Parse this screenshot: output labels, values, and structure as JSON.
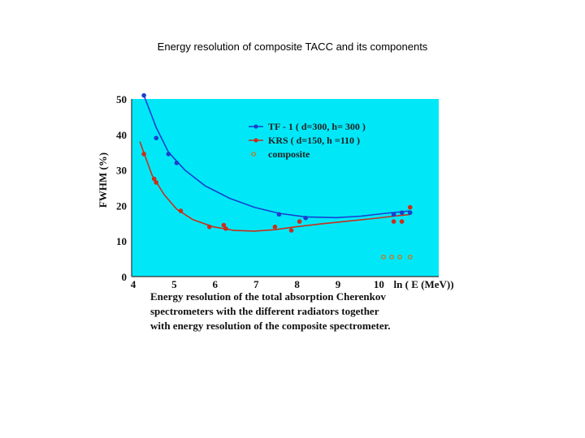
{
  "slide": {
    "title": "Energy resolution of composite TACC and its components"
  },
  "chart_data": {
    "type": "line",
    "xlabel": "ln ( E (MeV))",
    "ylabel": "FWHM (%)",
    "xlim": [
      4,
      11.5
    ],
    "ylim": [
      0,
      50
    ],
    "xticks": [
      4,
      5,
      6,
      7,
      8,
      9,
      10
    ],
    "yticks": [
      0,
      10,
      20,
      30,
      40,
      50
    ],
    "grid": false,
    "legend_position": "top-center",
    "background_color": "#00e8f8",
    "series": [
      {
        "name": "TF - 1 ( d=300, h= 300 )",
        "color": "#1a3fd0",
        "marker": "circle",
        "points": [
          [
            4.3,
            51
          ],
          [
            4.6,
            39
          ],
          [
            4.9,
            34.5
          ],
          [
            5.1,
            32
          ],
          [
            7.6,
            17.5
          ],
          [
            8.25,
            16.5
          ],
          [
            10.4,
            17.5
          ],
          [
            10.6,
            18
          ],
          [
            10.8,
            18
          ]
        ],
        "fit": [
          [
            4.3,
            51
          ],
          [
            4.6,
            42
          ],
          [
            4.9,
            35
          ],
          [
            5.3,
            30
          ],
          [
            5.8,
            25.5
          ],
          [
            6.4,
            22
          ],
          [
            7.0,
            19.5
          ],
          [
            7.6,
            17.8
          ],
          [
            8.25,
            16.8
          ],
          [
            9.0,
            16.6
          ],
          [
            9.6,
            17
          ],
          [
            10.2,
            17.8
          ],
          [
            10.8,
            18.5
          ]
        ]
      },
      {
        "name": "KRS ( d=150, h =110 )",
        "color": "#c8301a",
        "marker": "circle",
        "points": [
          [
            4.3,
            34.5
          ],
          [
            4.55,
            27.5
          ],
          [
            4.6,
            26.5
          ],
          [
            5.2,
            18.5
          ],
          [
            5.9,
            14
          ],
          [
            6.25,
            14.5
          ],
          [
            6.3,
            13.5
          ],
          [
            7.5,
            14
          ],
          [
            7.9,
            13
          ],
          [
            8.1,
            15.5
          ],
          [
            10.4,
            15.5
          ],
          [
            10.6,
            15.5
          ],
          [
            10.8,
            19.5
          ]
        ],
        "fit": [
          [
            4.2,
            38
          ],
          [
            4.5,
            28.5
          ],
          [
            4.8,
            23
          ],
          [
            5.1,
            19
          ],
          [
            5.5,
            16
          ],
          [
            6.0,
            14
          ],
          [
            6.5,
            13
          ],
          [
            7.0,
            12.8
          ],
          [
            7.5,
            13.2
          ],
          [
            8.0,
            14
          ],
          [
            8.6,
            14.8
          ],
          [
            9.2,
            15.5
          ],
          [
            9.8,
            16.2
          ],
          [
            10.4,
            17
          ],
          [
            10.8,
            17.5
          ]
        ]
      },
      {
        "name": "composite",
        "color": "#d07010",
        "marker": "open-circle",
        "points": [
          [
            10.15,
            5.5
          ],
          [
            10.35,
            5.5
          ],
          [
            10.55,
            5.5
          ],
          [
            10.8,
            5.5
          ]
        ]
      }
    ],
    "caption": [
      "Energy resolution of the total absorption Cherenkov",
      "spectrometers  with the different radiators together",
      "with energy resolution of the composite spectrometer."
    ]
  }
}
